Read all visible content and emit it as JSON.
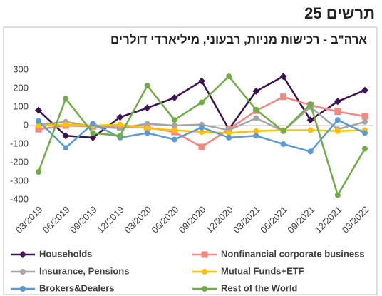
{
  "header": {
    "title": "תרשים 25"
  },
  "chart_data": {
    "type": "line",
    "title": "ארה\"ב - רכישות מניות, רבעוני, מיליארדי דולרים",
    "categories": [
      "03/2019",
      "06/2019",
      "09/2019",
      "12/2019",
      "03/2020",
      "06/2020",
      "09/2020",
      "12/2020",
      "03/2021",
      "06/2021",
      "09/2021",
      "12/2021",
      "03/2022"
    ],
    "series": [
      {
        "name": "Households",
        "color": "#3b1451",
        "marker": "diamond",
        "values": [
          82,
          -55,
          -65,
          45,
          95,
          150,
          240,
          -20,
          185,
          265,
          30,
          130,
          190
        ]
      },
      {
        "name": "Nonfinancial corporate business",
        "color": "#f4877f",
        "marker": "square",
        "values": [
          -20,
          0,
          -5,
          -10,
          -10,
          -35,
          -115,
          -20,
          80,
          155,
          110,
          75,
          50
        ]
      },
      {
        "name": "Insurance, Pensions",
        "color": "#a5a5a5",
        "marker": "circle",
        "values": [
          5,
          20,
          -5,
          -15,
          10,
          0,
          5,
          -25,
          40,
          -30,
          100,
          -20,
          20
        ]
      },
      {
        "name": "Mutual Funds+ETF",
        "color": "#ffc000",
        "marker": "circle",
        "values": [
          0,
          5,
          0,
          5,
          -15,
          -25,
          -35,
          -40,
          -30,
          -25,
          -25,
          -30,
          -25
        ]
      },
      {
        "name": "Brokers&Dealers",
        "color": "#5b9bd5",
        "marker": "circle",
        "values": [
          25,
          -120,
          10,
          -65,
          -40,
          -75,
          -10,
          -65,
          -55,
          -100,
          -140,
          30,
          -40
        ]
      },
      {
        "name": "Rest of the World",
        "color": "#70ad47",
        "marker": "circle",
        "values": [
          -250,
          145,
          -40,
          -55,
          215,
          30,
          125,
          265,
          85,
          -30,
          115,
          -375,
          -125
        ]
      }
    ],
    "ylim": [
      -400,
      300
    ],
    "yticks": [
      -400,
      -300,
      -200,
      -100,
      0,
      100,
      200,
      300
    ],
    "grid": false,
    "legend": "bottom"
  }
}
